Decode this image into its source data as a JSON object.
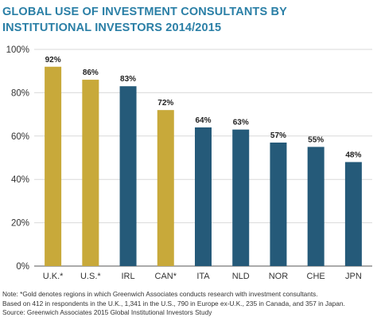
{
  "title_line1": "GLOBAL USE OF INVESTMENT CONSULTANTS BY",
  "title_line2": "INSTITUTIONAL INVESTORS 2014/2015",
  "colors": {
    "gold": "#c8a93a",
    "blue": "#255a79",
    "title": "#2a7fa6",
    "grid": "#d9d9d9",
    "axis": "#555555"
  },
  "chart_data": {
    "type": "bar",
    "categories": [
      "U.K.*",
      "U.S.*",
      "IRL",
      "CAN*",
      "ITA",
      "NLD",
      "NOR",
      "CHE",
      "JPN"
    ],
    "values": [
      92,
      86,
      83,
      72,
      64,
      63,
      57,
      55,
      48
    ],
    "data_labels": [
      "92%",
      "86%",
      "83%",
      "72%",
      "64%",
      "63%",
      "57%",
      "55%",
      "48%"
    ],
    "bar_colors": [
      "gold",
      "gold",
      "blue",
      "gold",
      "blue",
      "blue",
      "blue",
      "blue",
      "blue"
    ],
    "ylim": [
      0,
      100
    ],
    "yticks": [
      "0%",
      "20%",
      "40%",
      "60%",
      "80%",
      "100%"
    ],
    "grid": true,
    "legend": "none"
  },
  "note": {
    "line1": "Note: *Gold denotes regions in which Greenwich Associates conducts research with investment consultants.",
    "line2": "Based on 412 in respondents in the U.K., 1,341 in the U.S., 790 in Europe ex-U.K., 235 in Canada, and 357 in Japan.",
    "line3": "Source: Greenwich Associates 2015 Global Institutional Investors Study"
  }
}
